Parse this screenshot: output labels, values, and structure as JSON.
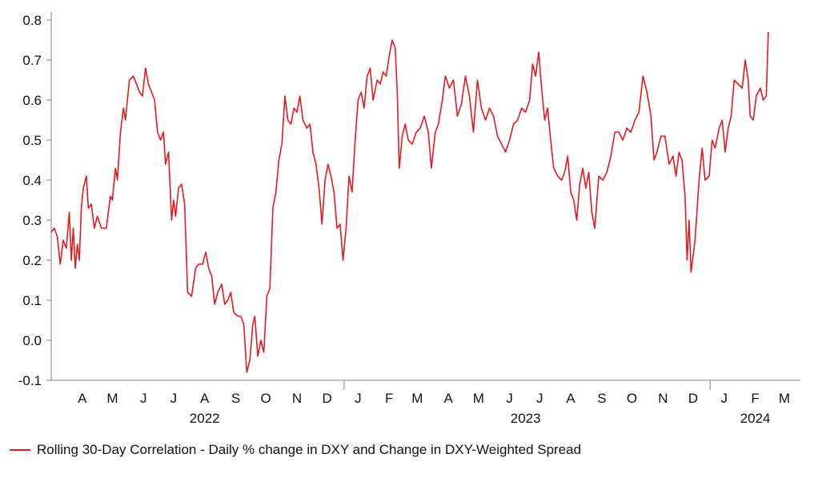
{
  "chart_data": {
    "type": "line",
    "ylim": [
      -0.1,
      0.8
    ],
    "y_ticks": [
      "0.8",
      "0.7",
      "0.6",
      "0.5",
      "0.4",
      "0.3",
      "0.2",
      "0.1",
      "0.0",
      "-0.1"
    ],
    "x_start": "2022-03-15",
    "x_end": "2024-03-31",
    "month_ticks": [
      {
        "label": "A",
        "date": "2022-04-15"
      },
      {
        "label": "M",
        "date": "2022-05-15"
      },
      {
        "label": "J",
        "date": "2022-06-15"
      },
      {
        "label": "J",
        "date": "2022-07-15"
      },
      {
        "label": "A",
        "date": "2022-08-15"
      },
      {
        "label": "S",
        "date": "2022-09-15"
      },
      {
        "label": "O",
        "date": "2022-10-15"
      },
      {
        "label": "N",
        "date": "2022-11-15"
      },
      {
        "label": "D",
        "date": "2022-12-15"
      },
      {
        "label": "J",
        "date": "2023-01-15"
      },
      {
        "label": "F",
        "date": "2023-02-15"
      },
      {
        "label": "M",
        "date": "2023-03-15"
      },
      {
        "label": "A",
        "date": "2023-04-15"
      },
      {
        "label": "M",
        "date": "2023-05-15"
      },
      {
        "label": "J",
        "date": "2023-06-15"
      },
      {
        "label": "J",
        "date": "2023-07-15"
      },
      {
        "label": "A",
        "date": "2023-08-15"
      },
      {
        "label": "S",
        "date": "2023-09-15"
      },
      {
        "label": "O",
        "date": "2023-10-15"
      },
      {
        "label": "N",
        "date": "2023-11-15"
      },
      {
        "label": "D",
        "date": "2023-12-15"
      },
      {
        "label": "J",
        "date": "2024-01-15"
      },
      {
        "label": "F",
        "date": "2024-02-15"
      },
      {
        "label": "M",
        "date": "2024-03-15"
      }
    ],
    "year_separators": [
      "2023-01-01",
      "2024-01-01"
    ],
    "year_labels": [
      {
        "label": "2022",
        "date": "2022-08-15"
      },
      {
        "label": "2023",
        "date": "2023-07-01"
      },
      {
        "label": "2024",
        "date": "2024-02-15"
      }
    ],
    "series": [
      {
        "name": "Rolling 30-Day Correlation - Daily % change in DXY and Change in DXY-Weighted Spread",
        "color": "#e8191e",
        "points": [
          [
            "2022-03-15",
            0.27
          ],
          [
            "2022-03-18",
            0.28
          ],
          [
            "2022-03-21",
            0.26
          ],
          [
            "2022-03-24",
            0.19
          ],
          [
            "2022-03-27",
            0.25
          ],
          [
            "2022-03-30",
            0.23
          ],
          [
            "2022-04-02",
            0.32
          ],
          [
            "2022-04-04",
            0.2
          ],
          [
            "2022-04-06",
            0.28
          ],
          [
            "2022-04-08",
            0.18
          ],
          [
            "2022-04-10",
            0.24
          ],
          [
            "2022-04-12",
            0.2
          ],
          [
            "2022-04-14",
            0.33
          ],
          [
            "2022-04-16",
            0.38
          ],
          [
            "2022-04-19",
            0.41
          ],
          [
            "2022-04-21",
            0.33
          ],
          [
            "2022-04-24",
            0.34
          ],
          [
            "2022-04-27",
            0.28
          ],
          [
            "2022-04-30",
            0.31
          ],
          [
            "2022-05-04",
            0.28
          ],
          [
            "2022-05-09",
            0.28
          ],
          [
            "2022-05-13",
            0.36
          ],
          [
            "2022-05-15",
            0.35
          ],
          [
            "2022-05-18",
            0.43
          ],
          [
            "2022-05-20",
            0.4
          ],
          [
            "2022-05-23",
            0.52
          ],
          [
            "2022-05-26",
            0.58
          ],
          [
            "2022-05-28",
            0.55
          ],
          [
            "2022-06-01",
            0.65
          ],
          [
            "2022-06-05",
            0.66
          ],
          [
            "2022-06-08",
            0.64
          ],
          [
            "2022-06-11",
            0.62
          ],
          [
            "2022-06-14",
            0.61
          ],
          [
            "2022-06-17",
            0.68
          ],
          [
            "2022-06-20",
            0.64
          ],
          [
            "2022-06-23",
            0.62
          ],
          [
            "2022-06-26",
            0.6
          ],
          [
            "2022-06-29",
            0.52
          ],
          [
            "2022-07-02",
            0.5
          ],
          [
            "2022-07-05",
            0.52
          ],
          [
            "2022-07-07",
            0.44
          ],
          [
            "2022-07-10",
            0.47
          ],
          [
            "2022-07-13",
            0.3
          ],
          [
            "2022-07-15",
            0.35
          ],
          [
            "2022-07-17",
            0.31
          ],
          [
            "2022-07-20",
            0.38
          ],
          [
            "2022-07-23",
            0.39
          ],
          [
            "2022-07-26",
            0.34
          ],
          [
            "2022-07-29",
            0.12
          ],
          [
            "2022-08-02",
            0.11
          ],
          [
            "2022-08-06",
            0.18
          ],
          [
            "2022-08-09",
            0.19
          ],
          [
            "2022-08-13",
            0.19
          ],
          [
            "2022-08-16",
            0.22
          ],
          [
            "2022-08-19",
            0.18
          ],
          [
            "2022-08-22",
            0.16
          ],
          [
            "2022-08-25",
            0.09
          ],
          [
            "2022-08-28",
            0.12
          ],
          [
            "2022-09-01",
            0.14
          ],
          [
            "2022-09-04",
            0.09
          ],
          [
            "2022-09-07",
            0.1
          ],
          [
            "2022-09-10",
            0.12
          ],
          [
            "2022-09-13",
            0.07
          ],
          [
            "2022-09-17",
            0.06
          ],
          [
            "2022-09-20",
            0.06
          ],
          [
            "2022-09-23",
            0.04
          ],
          [
            "2022-09-26",
            -0.08
          ],
          [
            "2022-09-29",
            -0.05
          ],
          [
            "2022-10-02",
            0.04
          ],
          [
            "2022-10-04",
            0.06
          ],
          [
            "2022-10-07",
            -0.04
          ],
          [
            "2022-10-10",
            0.0
          ],
          [
            "2022-10-13",
            -0.03
          ],
          [
            "2022-10-16",
            0.11
          ],
          [
            "2022-10-19",
            0.13
          ],
          [
            "2022-10-22",
            0.33
          ],
          [
            "2022-10-25",
            0.37
          ],
          [
            "2022-10-28",
            0.45
          ],
          [
            "2022-10-31",
            0.49
          ],
          [
            "2022-11-03",
            0.61
          ],
          [
            "2022-11-06",
            0.55
          ],
          [
            "2022-11-09",
            0.54
          ],
          [
            "2022-11-12",
            0.58
          ],
          [
            "2022-11-15",
            0.57
          ],
          [
            "2022-11-18",
            0.61
          ],
          [
            "2022-11-21",
            0.55
          ],
          [
            "2022-11-25",
            0.53
          ],
          [
            "2022-11-28",
            0.54
          ],
          [
            "2022-12-01",
            0.47
          ],
          [
            "2022-12-04",
            0.44
          ],
          [
            "2022-12-07",
            0.38
          ],
          [
            "2022-12-10",
            0.29
          ],
          [
            "2022-12-13",
            0.4
          ],
          [
            "2022-12-16",
            0.44
          ],
          [
            "2022-12-19",
            0.41
          ],
          [
            "2022-12-22",
            0.37
          ],
          [
            "2022-12-25",
            0.28
          ],
          [
            "2022-12-28",
            0.29
          ],
          [
            "2022-12-31",
            0.2
          ],
          [
            "2023-01-03",
            0.28
          ],
          [
            "2023-01-06",
            0.41
          ],
          [
            "2023-01-09",
            0.37
          ],
          [
            "2023-01-12",
            0.5
          ],
          [
            "2023-01-15",
            0.6
          ],
          [
            "2023-01-18",
            0.62
          ],
          [
            "2023-01-21",
            0.58
          ],
          [
            "2023-01-24",
            0.66
          ],
          [
            "2023-01-27",
            0.68
          ],
          [
            "2023-01-30",
            0.6
          ],
          [
            "2023-02-03",
            0.65
          ],
          [
            "2023-02-06",
            0.64
          ],
          [
            "2023-02-09",
            0.67
          ],
          [
            "2023-02-12",
            0.66
          ],
          [
            "2023-02-15",
            0.71
          ],
          [
            "2023-02-18",
            0.75
          ],
          [
            "2023-02-21",
            0.73
          ],
          [
            "2023-02-23",
            0.62
          ],
          [
            "2023-02-25",
            0.43
          ],
          [
            "2023-02-28",
            0.51
          ],
          [
            "2023-03-03",
            0.54
          ],
          [
            "2023-03-06",
            0.5
          ],
          [
            "2023-03-10",
            0.49
          ],
          [
            "2023-03-14",
            0.52
          ],
          [
            "2023-03-18",
            0.53
          ],
          [
            "2023-03-22",
            0.56
          ],
          [
            "2023-03-26",
            0.52
          ],
          [
            "2023-03-29",
            0.43
          ],
          [
            "2023-04-02",
            0.52
          ],
          [
            "2023-04-05",
            0.54
          ],
          [
            "2023-04-09",
            0.6
          ],
          [
            "2023-04-12",
            0.66
          ],
          [
            "2023-04-16",
            0.63
          ],
          [
            "2023-04-20",
            0.65
          ],
          [
            "2023-04-24",
            0.56
          ],
          [
            "2023-04-28",
            0.59
          ],
          [
            "2023-05-02",
            0.66
          ],
          [
            "2023-05-06",
            0.61
          ],
          [
            "2023-05-10",
            0.52
          ],
          [
            "2023-05-14",
            0.65
          ],
          [
            "2023-05-18",
            0.58
          ],
          [
            "2023-05-22",
            0.55
          ],
          [
            "2023-05-26",
            0.58
          ],
          [
            "2023-05-30",
            0.56
          ],
          [
            "2023-06-03",
            0.51
          ],
          [
            "2023-06-07",
            0.49
          ],
          [
            "2023-06-11",
            0.47
          ],
          [
            "2023-06-15",
            0.5
          ],
          [
            "2023-06-19",
            0.54
          ],
          [
            "2023-06-23",
            0.55
          ],
          [
            "2023-06-27",
            0.58
          ],
          [
            "2023-07-01",
            0.57
          ],
          [
            "2023-07-05",
            0.6
          ],
          [
            "2023-07-08",
            0.69
          ],
          [
            "2023-07-11",
            0.66
          ],
          [
            "2023-07-14",
            0.72
          ],
          [
            "2023-07-17",
            0.63
          ],
          [
            "2023-07-20",
            0.55
          ],
          [
            "2023-07-23",
            0.58
          ],
          [
            "2023-07-26",
            0.5
          ],
          [
            "2023-07-29",
            0.43
          ],
          [
            "2023-08-02",
            0.41
          ],
          [
            "2023-08-06",
            0.4
          ],
          [
            "2023-08-09",
            0.42
          ],
          [
            "2023-08-12",
            0.46
          ],
          [
            "2023-08-15",
            0.37
          ],
          [
            "2023-08-18",
            0.35
          ],
          [
            "2023-08-21",
            0.3
          ],
          [
            "2023-08-24",
            0.39
          ],
          [
            "2023-08-27",
            0.43
          ],
          [
            "2023-08-30",
            0.38
          ],
          [
            "2023-09-02",
            0.42
          ],
          [
            "2023-09-05",
            0.32
          ],
          [
            "2023-09-08",
            0.28
          ],
          [
            "2023-09-12",
            0.41
          ],
          [
            "2023-09-16",
            0.4
          ],
          [
            "2023-09-20",
            0.42
          ],
          [
            "2023-09-24",
            0.46
          ],
          [
            "2023-09-28",
            0.52
          ],
          [
            "2023-10-02",
            0.52
          ],
          [
            "2023-10-06",
            0.5
          ],
          [
            "2023-10-10",
            0.53
          ],
          [
            "2023-10-14",
            0.52
          ],
          [
            "2023-10-18",
            0.55
          ],
          [
            "2023-10-22",
            0.57
          ],
          [
            "2023-10-26",
            0.66
          ],
          [
            "2023-10-30",
            0.62
          ],
          [
            "2023-11-03",
            0.56
          ],
          [
            "2023-11-06",
            0.45
          ],
          [
            "2023-11-09",
            0.47
          ],
          [
            "2023-11-13",
            0.51
          ],
          [
            "2023-11-17",
            0.51
          ],
          [
            "2023-11-21",
            0.44
          ],
          [
            "2023-11-25",
            0.46
          ],
          [
            "2023-11-28",
            0.41
          ],
          [
            "2023-12-01",
            0.47
          ],
          [
            "2023-12-04",
            0.45
          ],
          [
            "2023-12-07",
            0.36
          ],
          [
            "2023-12-09",
            0.2
          ],
          [
            "2023-12-11",
            0.3
          ],
          [
            "2023-12-13",
            0.17
          ],
          [
            "2023-12-17",
            0.25
          ],
          [
            "2023-12-21",
            0.4
          ],
          [
            "2023-12-24",
            0.48
          ],
          [
            "2023-12-27",
            0.4
          ],
          [
            "2023-12-31",
            0.41
          ],
          [
            "2024-01-03",
            0.5
          ],
          [
            "2024-01-06",
            0.48
          ],
          [
            "2024-01-10",
            0.53
          ],
          [
            "2024-01-13",
            0.55
          ],
          [
            "2024-01-16",
            0.47
          ],
          [
            "2024-01-19",
            0.53
          ],
          [
            "2024-01-22",
            0.56
          ],
          [
            "2024-01-25",
            0.65
          ],
          [
            "2024-01-29",
            0.64
          ],
          [
            "2024-02-02",
            0.63
          ],
          [
            "2024-02-05",
            0.7
          ],
          [
            "2024-02-08",
            0.65
          ],
          [
            "2024-02-10",
            0.56
          ],
          [
            "2024-02-13",
            0.55
          ],
          [
            "2024-02-16",
            0.61
          ],
          [
            "2024-02-20",
            0.63
          ],
          [
            "2024-02-23",
            0.6
          ],
          [
            "2024-02-26",
            0.61
          ],
          [
            "2024-02-28",
            0.77
          ]
        ]
      }
    ]
  }
}
